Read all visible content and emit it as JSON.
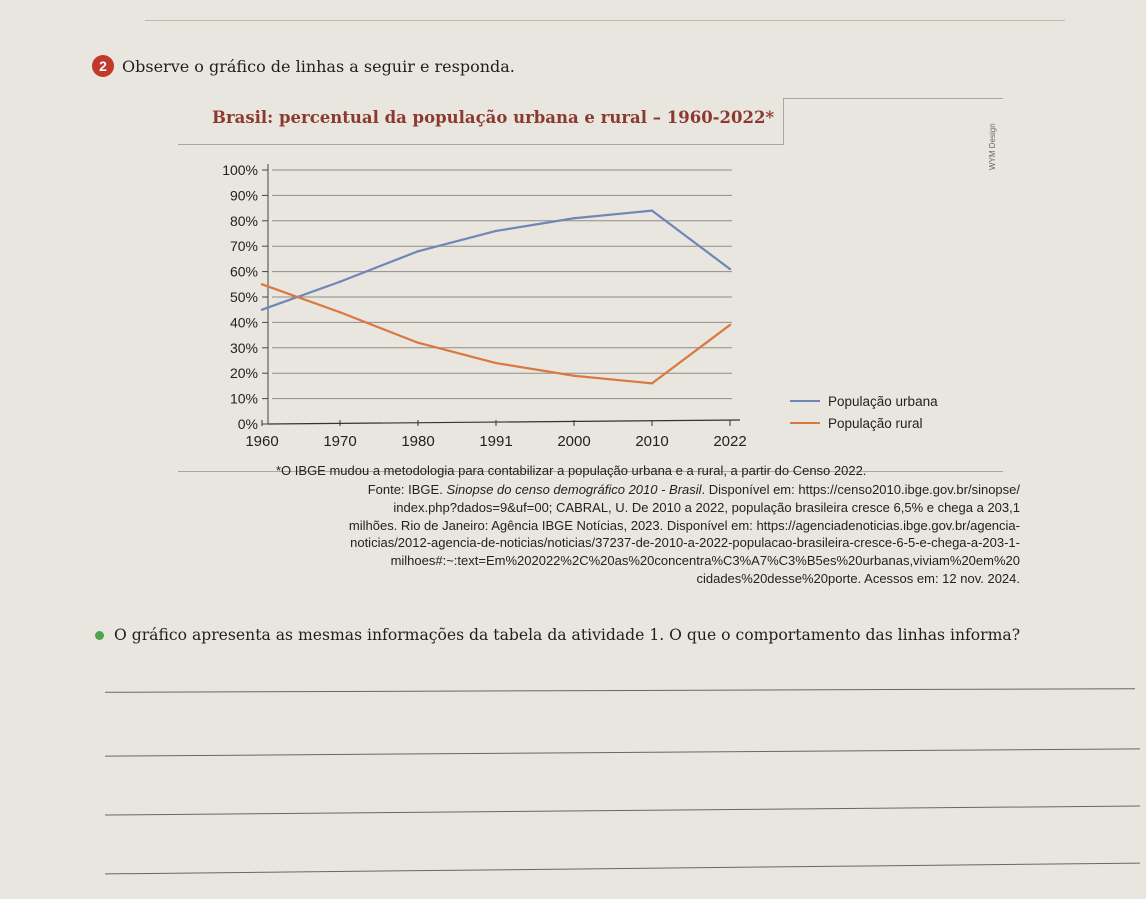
{
  "question": {
    "number": "2",
    "instruction": "Observe o gráfico de linhas a seguir e responda."
  },
  "chart_data": {
    "type": "line",
    "title": "Brasil: percentual da população urbana e rural – 1960-2022*",
    "x": [
      "1960",
      "1970",
      "1980",
      "1991",
      "2000",
      "2010",
      "2022"
    ],
    "y_ticks": [
      "100%",
      "90%",
      "80%",
      "70%",
      "60%",
      "50%",
      "40%",
      "30%",
      "20%",
      "10%",
      "0%"
    ],
    "ylim": [
      0,
      100
    ],
    "grid": true,
    "legend_position": "bottom-right",
    "series": [
      {
        "name": "População urbana",
        "color": "#6f86b8",
        "values": [
          45,
          56,
          68,
          76,
          81,
          84,
          61
        ]
      },
      {
        "name": "População rural",
        "color": "#d9783f",
        "values": [
          55,
          44,
          32,
          24,
          19,
          16,
          39
        ]
      }
    ],
    "credit": "WYM Design"
  },
  "footnote": "*O IBGE mudou a metodologia para contabilizar a população urbana e a rural, a partir do Censo 2022.",
  "source": {
    "lead": "Fonte: IBGE. ",
    "title": "Sinopse do censo demográfico 2010 - Brasil",
    "line1_rest": ". Disponível em: https://censo2010.ibge.gov.br/sinopse/",
    "line2": "index.php?dados=9&uf=00; CABRAL, U. De 2010 a 2022, população brasileira cresce 6,5% e chega a 203,1",
    "line3": "milhões. Rio de Janeiro: Agência IBGE Notícias, 2023. Disponível em: https://agenciadenoticias.ibge.gov.br/agencia-",
    "line4": "noticias/2012-agencia-de-noticias/noticias/37237-de-2010-a-2022-populacao-brasileira-cresce-6-5-e-chega-a-203-1-",
    "line5": "milhoes#:~:text=Em%202022%2C%20as%20concentra%C3%A7%C3%B5es%20urbanas,viviam%20em%20",
    "line6": "cidades%20desse%20porte. Acessos em: 12 nov. 2024."
  },
  "prompt": {
    "text": "O gráfico apresenta as mesmas informações da tabela da atividade 1. O que o comportamento das linhas informa?"
  }
}
